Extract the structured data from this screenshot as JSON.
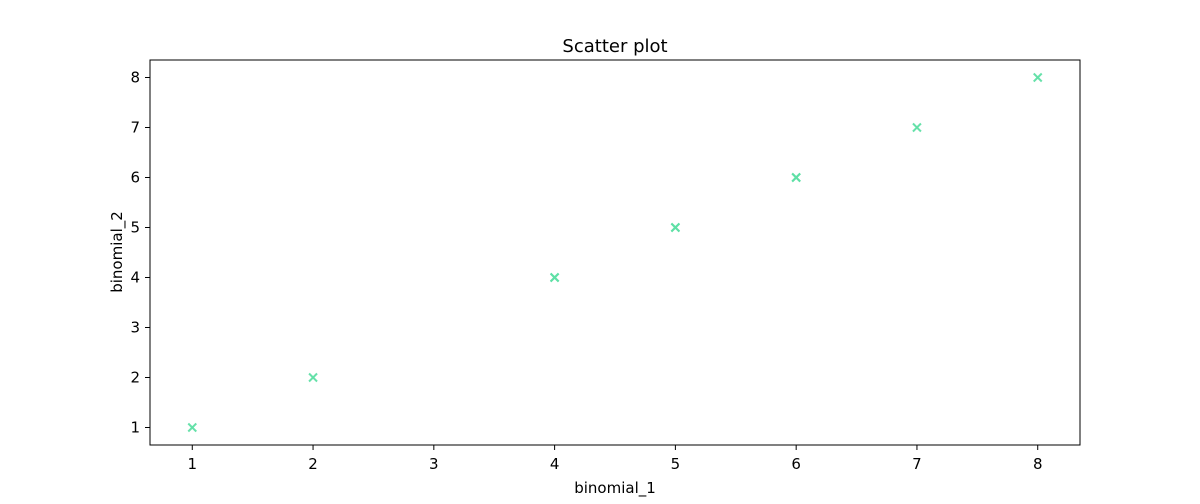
{
  "chart_data": {
    "type": "scatter",
    "title": "Scatter plot",
    "xlabel": "binomial_1",
    "ylabel": "binomial_2",
    "xlim": [
      0.65,
      8.35
    ],
    "ylim": [
      0.65,
      8.35
    ],
    "x_ticks": [
      1,
      2,
      3,
      4,
      5,
      6,
      7,
      8
    ],
    "y_ticks": [
      1,
      2,
      3,
      4,
      5,
      6,
      7,
      8
    ],
    "grid": false,
    "marker": "x",
    "color": "#5fe0a6",
    "series": [
      {
        "points": [
          {
            "x": 1,
            "y": 1
          },
          {
            "x": 2,
            "y": 2
          },
          {
            "x": 4,
            "y": 4
          },
          {
            "x": 4,
            "y": 4
          },
          {
            "x": 5,
            "y": 5
          },
          {
            "x": 5,
            "y": 5
          },
          {
            "x": 6,
            "y": 6
          },
          {
            "x": 6,
            "y": 6
          },
          {
            "x": 7,
            "y": 7
          },
          {
            "x": 8,
            "y": 8
          }
        ]
      }
    ]
  }
}
